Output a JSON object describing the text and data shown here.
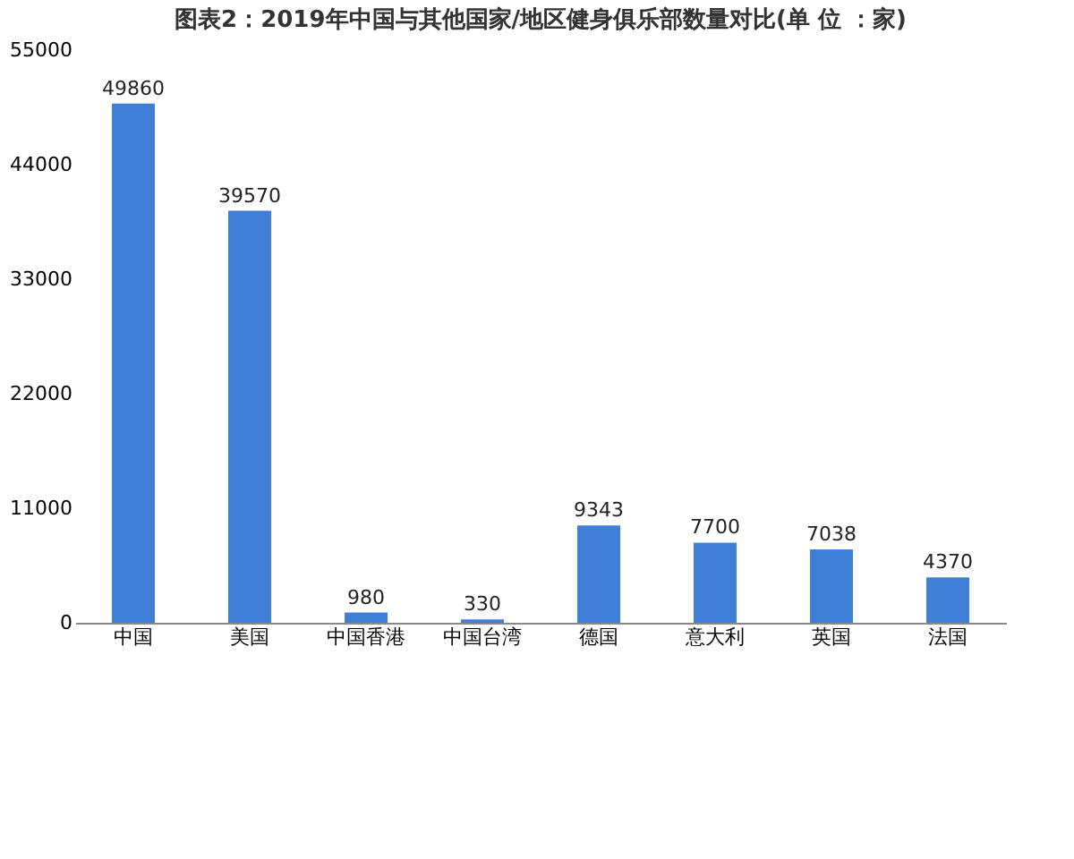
{
  "chart_data": {
    "type": "bar",
    "title": "图表2：2019年中国与其他国家/地区健身俱乐部数量对比(单 位 ：家)",
    "categories": [
      "中国",
      "美国",
      "中国香港",
      "中国台湾",
      "德国",
      "意大利",
      "英国",
      "法国"
    ],
    "values": [
      49860,
      39570,
      980,
      330,
      9343,
      7700,
      7038,
      4370
    ],
    "color": "#3f7fd8",
    "ylim": [
      0,
      55000
    ],
    "yticks": [
      0,
      11000,
      22000,
      33000,
      44000,
      55000
    ],
    "grid": false,
    "data_labels": true
  }
}
